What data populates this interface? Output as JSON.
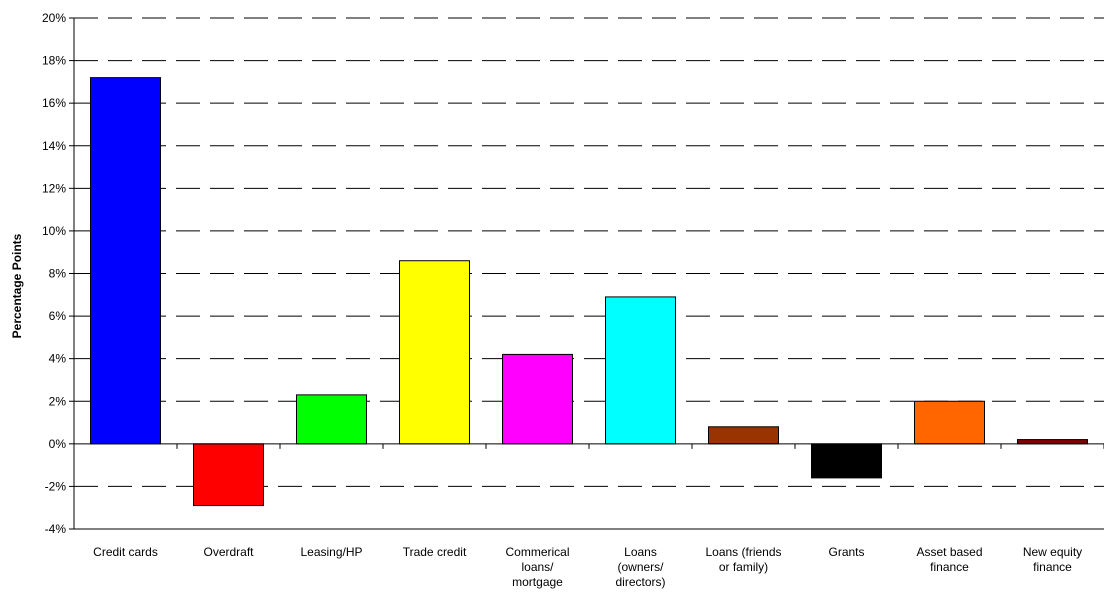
{
  "chart_data": {
    "type": "bar",
    "title": "",
    "xlabel": "",
    "ylabel": "Percentage Points",
    "ylim": [
      -4,
      20
    ],
    "y_ticks": [
      -4,
      -2,
      0,
      2,
      4,
      6,
      8,
      10,
      12,
      14,
      16,
      18,
      20
    ],
    "y_tick_labels": [
      "-4%",
      "-2%",
      "0%",
      "2%",
      "4%",
      "6%",
      "8%",
      "10%",
      "12%",
      "14%",
      "16%",
      "18%",
      "20%"
    ],
    "grid": "dashed horizontal",
    "legend": "none",
    "categories": [
      [
        "Credit cards"
      ],
      [
        "Overdraft"
      ],
      [
        "Leasing/HP"
      ],
      [
        "Trade credit"
      ],
      [
        "Commerical",
        "loans/",
        "mortgage"
      ],
      [
        "Loans",
        "(owners/",
        "directors)"
      ],
      [
        "Loans (friends",
        "or family)"
      ],
      [
        "Grants"
      ],
      [
        "Asset based",
        "finance"
      ],
      [
        "New equity",
        "finance"
      ]
    ],
    "values": [
      17.2,
      -2.9,
      2.3,
      8.6,
      4.2,
      6.9,
      0.8,
      -1.6,
      2.0,
      0.2
    ],
    "colors": [
      "#0000ff",
      "#ff0000",
      "#00ff00",
      "#ffff00",
      "#ff00ff",
      "#00ffff",
      "#993300",
      "#000000",
      "#ff6600",
      "#800000"
    ]
  }
}
